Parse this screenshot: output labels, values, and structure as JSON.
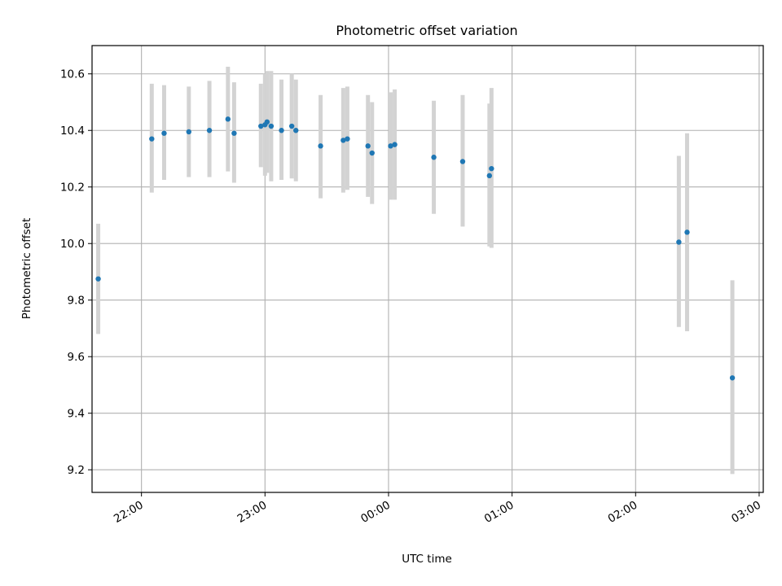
{
  "chart_data": {
    "type": "scatter",
    "title": "Photometric offset variation",
    "xlabel": "UTC time",
    "ylabel": "Photometric offset",
    "x_kind": "time",
    "x_unit": "UTC",
    "x_ticks": [
      "22:00",
      "23:00",
      "00:00",
      "01:00",
      "02:00",
      "03:00"
    ],
    "y_ticks": [
      9.2,
      9.4,
      9.6,
      9.8,
      10.0,
      10.2,
      10.4,
      10.6
    ],
    "xlim": [
      "21:36",
      "03:02"
    ],
    "ylim": [
      9.12,
      10.7
    ],
    "grid": true,
    "colors": {
      "marker": "#1f77b4",
      "errorbar": "#d3d3d3",
      "grid": "#b0b0b0"
    },
    "series": [
      {
        "points": [
          {
            "x": "21:39",
            "y": 9.875,
            "yerr_low": 9.68,
            "yerr_high": 10.07
          },
          {
            "x": "22:05",
            "y": 10.37,
            "yerr_low": 10.18,
            "yerr_high": 10.565
          },
          {
            "x": "22:11",
            "y": 10.39,
            "yerr_low": 10.225,
            "yerr_high": 10.56
          },
          {
            "x": "22:23",
            "y": 10.395,
            "yerr_low": 10.235,
            "yerr_high": 10.555
          },
          {
            "x": "22:33",
            "y": 10.4,
            "yerr_low": 10.235,
            "yerr_high": 10.575
          },
          {
            "x": "22:42",
            "y": 10.44,
            "yerr_low": 10.255,
            "yerr_high": 10.625
          },
          {
            "x": "22:45",
            "y": 10.39,
            "yerr_low": 10.215,
            "yerr_high": 10.57
          },
          {
            "x": "22:58",
            "y": 10.415,
            "yerr_low": 10.27,
            "yerr_high": 10.565
          },
          {
            "x": "23:00",
            "y": 10.42,
            "yerr_low": 10.24,
            "yerr_high": 10.6
          },
          {
            "x": "23:01",
            "y": 10.43,
            "yerr_low": 10.25,
            "yerr_high": 10.61
          },
          {
            "x": "23:03",
            "y": 10.415,
            "yerr_low": 10.22,
            "yerr_high": 10.61
          },
          {
            "x": "23:08",
            "y": 10.4,
            "yerr_low": 10.225,
            "yerr_high": 10.58
          },
          {
            "x": "23:13",
            "y": 10.415,
            "yerr_low": 10.23,
            "yerr_high": 10.6
          },
          {
            "x": "23:15",
            "y": 10.4,
            "yerr_low": 10.22,
            "yerr_high": 10.58
          },
          {
            "x": "23:27",
            "y": 10.345,
            "yerr_low": 10.16,
            "yerr_high": 10.525
          },
          {
            "x": "23:38",
            "y": 10.365,
            "yerr_low": 10.18,
            "yerr_high": 10.55
          },
          {
            "x": "23:40",
            "y": 10.37,
            "yerr_low": 10.19,
            "yerr_high": 10.555
          },
          {
            "x": "23:50",
            "y": 10.345,
            "yerr_low": 10.165,
            "yerr_high": 10.525
          },
          {
            "x": "23:52",
            "y": 10.32,
            "yerr_low": 10.14,
            "yerr_high": 10.5
          },
          {
            "x": "00:01",
            "y": 10.345,
            "yerr_low": 10.155,
            "yerr_high": 10.535
          },
          {
            "x": "00:03",
            "y": 10.35,
            "yerr_low": 10.155,
            "yerr_high": 10.545
          },
          {
            "x": "00:22",
            "y": 10.305,
            "yerr_low": 10.105,
            "yerr_high": 10.505
          },
          {
            "x": "00:36",
            "y": 10.29,
            "yerr_low": 10.06,
            "yerr_high": 10.525
          },
          {
            "x": "00:49",
            "y": 10.24,
            "yerr_low": 9.99,
            "yerr_high": 10.495
          },
          {
            "x": "00:50",
            "y": 10.265,
            "yerr_low": 9.985,
            "yerr_high": 10.55
          },
          {
            "x": "02:21",
            "y": 10.005,
            "yerr_low": 9.705,
            "yerr_high": 10.31
          },
          {
            "x": "02:25",
            "y": 10.04,
            "yerr_low": 9.69,
            "yerr_high": 10.39
          },
          {
            "x": "02:47",
            "y": 9.525,
            "yerr_low": 9.185,
            "yerr_high": 9.87
          }
        ]
      }
    ]
  }
}
